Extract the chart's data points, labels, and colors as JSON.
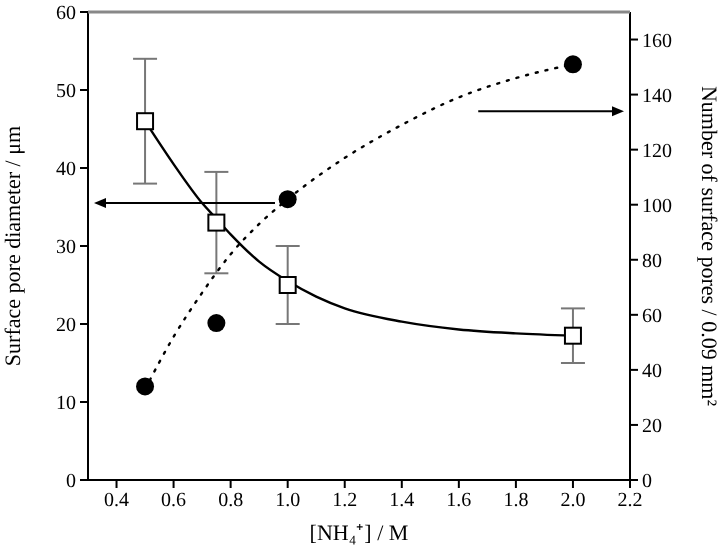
{
  "chart_data": {
    "type": "scatter",
    "xlabel": "[NH₄⁺] / M",
    "ylabel": "Surface pore diameter / μm",
    "y2label": "Number of surface pores / 0.09 mm²",
    "xlim": [
      0.3,
      2.2
    ],
    "xticks": [
      0.4,
      0.6,
      0.8,
      {
        "value": 1,
        "label": "1.0"
      },
      1.2,
      1.4,
      1.6,
      1.8,
      {
        "value": 2,
        "label": "2.0"
      },
      2.2
    ],
    "legend": false,
    "ylim": [
      0,
      60
    ],
    "yticks": [
      0,
      10,
      20,
      30,
      40,
      50,
      60
    ],
    "y2lim": [
      0,
      170
    ],
    "y2ticks": [
      0,
      20,
      40,
      60,
      80,
      100,
      120,
      140,
      160
    ],
    "series": [
      {
        "type": "scatter",
        "marker": "square",
        "color": "#000000",
        "x": [
          0.5,
          0.75,
          1,
          2
        ],
        "values": [
          46,
          33,
          25,
          18.5
        ],
        "errors": [
          [
            38,
            54
          ],
          [
            26.5,
            39.5
          ],
          [
            20,
            30
          ],
          [
            15,
            22
          ]
        ]
      },
      {
        "type": "line",
        "marker": "none",
        "line_style": "solid",
        "color": "#000000",
        "x": [
          0.5,
          0.6,
          0.7,
          0.75,
          0.8,
          0.9,
          1,
          1.1,
          1.2,
          1.4,
          1.6,
          1.8,
          2
        ],
        "values": [
          46,
          40.5,
          35.5,
          33.5,
          31.5,
          28,
          25.5,
          23.5,
          22,
          20.3,
          19.3,
          18.8,
          18.5
        ]
      },
      {
        "type": "scatter",
        "marker": "circle",
        "axis": "y2",
        "color": "#000000",
        "x": [
          0.5,
          0.75,
          1,
          2
        ],
        "values": [
          34,
          57,
          102,
          151
        ]
      },
      {
        "type": "line",
        "marker": "none",
        "line_style": "dotted",
        "axis": "y2",
        "color": "#000000",
        "x": [
          0.5,
          0.6,
          0.7,
          0.8,
          0.9,
          1,
          1.2,
          1.4,
          1.6,
          1.8,
          2
        ],
        "values": [
          33,
          52,
          68,
          82,
          93,
          102,
          117,
          129,
          139,
          146,
          151
        ]
      }
    ]
  }
}
